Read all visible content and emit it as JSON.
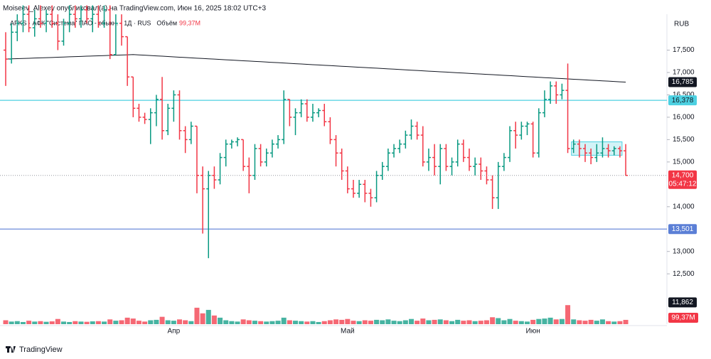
{
  "header": "Moiseev_Alexey опубликовал(а) на TradingView.com, Июн 16, 2025 18:02 UTC+3",
  "footer": "TradingView",
  "chart_data": {
    "type": "ohlc",
    "symbol": "AFKS · АФК \"Система\" ПАО - обыкн. · 1Д · RUS",
    "volume_title": "Объём",
    "currency": "RUB",
    "up_color": "#089981",
    "down_color": "#f23645",
    "ma_color": "#131722",
    "ylim": [
      11820,
      18620
    ],
    "yticks": [
      {
        "value": 12500,
        "label": "12,500"
      },
      {
        "value": 13000,
        "label": "13,000"
      },
      {
        "value": 14000,
        "label": "14,000"
      },
      {
        "value": 15000,
        "label": "15,000"
      },
      {
        "value": 15500,
        "label": "15,500"
      },
      {
        "value": 16000,
        "label": "16,000"
      },
      {
        "value": 16500,
        "label": "16,500"
      },
      {
        "value": 17000,
        "label": "17,000"
      },
      {
        "value": 17500,
        "label": "17,500"
      }
    ],
    "categories": [
      null,
      null,
      null,
      null,
      null,
      null,
      null,
      null,
      null,
      null,
      null,
      null,
      null,
      null,
      null,
      null,
      null,
      null,
      null,
      null,
      null,
      null,
      null,
      null,
      null,
      null,
      null,
      null,
      null,
      "Апр",
      null,
      null,
      null,
      null,
      null,
      null,
      null,
      null,
      null,
      null,
      null,
      null,
      null,
      null,
      null,
      null,
      null,
      null,
      null,
      null,
      null,
      null,
      null,
      null,
      null,
      null,
      null,
      null,
      null,
      "Май",
      null,
      null,
      null,
      null,
      null,
      null,
      null,
      null,
      null,
      null,
      null,
      null,
      null,
      null,
      null,
      null,
      null,
      null,
      null,
      null,
      null,
      null,
      null,
      null,
      null,
      null,
      null,
      null,
      null,
      null,
      null,
      "Июн",
      null,
      null,
      null,
      null,
      null,
      null,
      null,
      null,
      null,
      null,
      null,
      null,
      null,
      null,
      null,
      null
    ],
    "ohlc": [
      [
        17500,
        17900,
        16700,
        17300
      ],
      [
        17300,
        18100,
        17200,
        17900
      ],
      [
        17900,
        18300,
        17700,
        18100
      ],
      [
        18100,
        18500,
        17900,
        18300
      ],
      [
        18300,
        18500,
        17900,
        18000
      ],
      [
        18000,
        18400,
        17800,
        18200
      ],
      [
        18200,
        18500,
        18000,
        18100
      ],
      [
        18100,
        18400,
        17900,
        18300
      ],
      [
        18300,
        18500,
        18000,
        18100
      ],
      [
        18100,
        18300,
        17500,
        17700
      ],
      [
        17700,
        18200,
        17600,
        18100
      ],
      [
        18100,
        18500,
        17900,
        18300
      ],
      [
        18300,
        18500,
        18000,
        18200
      ],
      [
        18200,
        18500,
        18000,
        18400
      ],
      [
        18400,
        18500,
        18100,
        18200
      ],
      [
        18200,
        18500,
        17900,
        18300
      ],
      [
        18300,
        18500,
        18000,
        18100
      ],
      [
        18100,
        18500,
        18000,
        18400
      ],
      [
        18400,
        18500,
        17300,
        17400
      ],
      [
        17400,
        18300,
        17400,
        18100
      ],
      [
        18100,
        18300,
        17600,
        17800
      ],
      [
        17800,
        17800,
        16700,
        16900
      ],
      [
        16900,
        16900,
        16000,
        16200
      ],
      [
        16200,
        16300,
        15900,
        16000
      ],
      [
        16000,
        16100,
        15850,
        15950
      ],
      [
        15950,
        16200,
        15400,
        16100
      ],
      [
        16100,
        16500,
        15800,
        16400
      ],
      [
        16400,
        16900,
        15500,
        15700
      ],
      [
        15700,
        16300,
        15600,
        16200
      ],
      [
        16200,
        16600,
        15900,
        16500
      ],
      [
        16500,
        16600,
        15500,
        15700
      ],
      [
        15700,
        15800,
        15200,
        15500
      ],
      [
        15500,
        15900,
        15400,
        15800
      ],
      [
        15800,
        15800,
        14300,
        14700
      ],
      [
        14700,
        14900,
        13400,
        14400
      ],
      [
        14400,
        14800,
        12850,
        14700
      ],
      [
        14700,
        14900,
        14400,
        14600
      ],
      [
        14600,
        15200,
        14500,
        15100
      ],
      [
        15100,
        15500,
        14900,
        15400
      ],
      [
        15400,
        15500,
        15300,
        15450
      ],
      [
        15450,
        15550,
        15350,
        15500
      ],
      [
        15500,
        15500,
        14800,
        14900
      ],
      [
        14900,
        15100,
        14300,
        14700
      ],
      [
        14700,
        15400,
        14600,
        15300
      ],
      [
        15300,
        15400,
        14900,
        15000
      ],
      [
        15000,
        15300,
        14900,
        15200
      ],
      [
        15200,
        15500,
        15100,
        15400
      ],
      [
        15400,
        15600,
        15300,
        15500
      ],
      [
        15500,
        16600,
        15400,
        16400
      ],
      [
        16400,
        16400,
        15800,
        16000
      ],
      [
        16000,
        16200,
        15600,
        16100
      ],
      [
        16100,
        16400,
        16000,
        16300
      ],
      [
        16300,
        16400,
        15900,
        16000
      ],
      [
        16000,
        16300,
        15900,
        16100
      ],
      [
        16100,
        16200,
        16000,
        16150
      ],
      [
        16150,
        16300,
        15800,
        15900
      ],
      [
        15900,
        16000,
        15400,
        15500
      ],
      [
        15500,
        15600,
        14900,
        15200
      ],
      [
        15200,
        15300,
        14600,
        14800
      ],
      [
        14800,
        14900,
        14300,
        14400
      ],
      [
        14400,
        14600,
        14200,
        14300
      ],
      [
        14300,
        14600,
        14200,
        14500
      ],
      [
        14500,
        14600,
        14100,
        14300
      ],
      [
        14300,
        14400,
        14000,
        14200
      ],
      [
        14200,
        14800,
        14100,
        14700
      ],
      [
        14700,
        15000,
        14600,
        14900
      ],
      [
        14900,
        15300,
        14800,
        15200
      ],
      [
        15200,
        15400,
        15100,
        15300
      ],
      [
        15300,
        15500,
        15200,
        15400
      ],
      [
        15400,
        15700,
        15300,
        15600
      ],
      [
        15600,
        15950,
        15500,
        15800
      ],
      [
        15800,
        15900,
        15500,
        15600
      ],
      [
        15600,
        15800,
        14900,
        15000
      ],
      [
        15000,
        15300,
        14800,
        15100
      ],
      [
        15100,
        15400,
        14700,
        14900
      ],
      [
        14900,
        15400,
        14500,
        15300
      ],
      [
        15300,
        15400,
        14800,
        14900
      ],
      [
        14900,
        15100,
        14700,
        15000
      ],
      [
        15000,
        15500,
        14900,
        15400
      ],
      [
        15400,
        15500,
        15000,
        15100
      ],
      [
        15100,
        15300,
        14800,
        14900
      ],
      [
        14900,
        15100,
        14700,
        14950
      ],
      [
        14950,
        15100,
        14600,
        14800
      ],
      [
        14800,
        14900,
        14500,
        14600
      ],
      [
        14600,
        14700,
        13950,
        14200
      ],
      [
        14200,
        15000,
        13950,
        14900
      ],
      [
        14900,
        15200,
        14800,
        15100
      ],
      [
        15100,
        15800,
        15000,
        15700
      ],
      [
        15700,
        15900,
        15300,
        15600
      ],
      [
        15600,
        15900,
        15500,
        15800
      ],
      [
        15800,
        15900,
        15600,
        15850
      ],
      [
        15850,
        15900,
        15100,
        15200
      ],
      [
        15200,
        16200,
        15100,
        16100
      ],
      [
        16100,
        16600,
        16000,
        16400
      ],
      [
        16400,
        16800,
        16300,
        16700
      ],
      [
        16700,
        16800,
        16300,
        16500
      ],
      [
        16500,
        16750,
        16400,
        16600
      ],
      [
        16600,
        17200,
        15200,
        15300
      ],
      [
        15300,
        15500,
        15200,
        15400
      ],
      [
        15400,
        15500,
        15100,
        15300
      ],
      [
        15300,
        15400,
        15000,
        15200
      ],
      [
        15200,
        15300,
        14950,
        15100
      ],
      [
        15100,
        15400,
        15000,
        15200
      ],
      [
        15200,
        15550,
        15100,
        15300
      ],
      [
        15300,
        15400,
        15100,
        15250
      ],
      [
        15250,
        15350,
        15150,
        15300
      ],
      [
        15300,
        15350,
        15100,
        15250
      ],
      [
        15250,
        15400,
        14700,
        14700
      ]
    ],
    "ma": [
      17300,
      17305,
      17310,
      17314,
      17318,
      17323,
      17327,
      17332,
      17336,
      17341,
      17345,
      17350,
      17355,
      17359,
      17364,
      17368,
      17373,
      17377,
      17382,
      17386,
      17391,
      17395,
      17400,
      17393,
      17386,
      17378,
      17371,
      17364,
      17357,
      17349,
      17342,
      17335,
      17328,
      17320,
      17313,
      17306,
      17299,
      17291,
      17284,
      17277,
      17270,
      17262,
      17255,
      17248,
      17241,
      17233,
      17226,
      17219,
      17212,
      17204,
      17197,
      17190,
      17183,
      17175,
      17168,
      17161,
      17154,
      17146,
      17139,
      17132,
      17125,
      17117,
      17110,
      17103,
      17096,
      17088,
      17081,
      17074,
      17067,
      17059,
      17052,
      17045,
      17038,
      17030,
      17023,
      17016,
      17009,
      17001,
      16994,
      16987,
      16980,
      16972,
      16965,
      16958,
      16951,
      16943,
      16936,
      16929,
      16922,
      16914,
      16907,
      16900,
      16893,
      16885,
      16878,
      16871,
      16864,
      16856,
      16849,
      16842,
      16835,
      16827,
      16820,
      16813,
      16806,
      16798,
      16791,
      16785
    ],
    "volume": {
      "vlim": [
        0,
        460
      ],
      "last_label": "99,37M",
      "values": [
        90,
        60,
        70,
        50,
        80,
        60,
        70,
        55,
        65,
        120,
        60,
        50,
        70,
        60,
        55,
        65,
        70,
        60,
        110,
        80,
        90,
        150,
        130,
        80,
        60,
        90,
        100,
        170,
        90,
        80,
        110,
        90,
        70,
        380,
        250,
        330,
        200,
        150,
        90,
        70,
        60,
        110,
        90,
        80,
        70,
        60,
        70,
        80,
        150,
        90,
        80,
        70,
        60,
        70,
        50,
        70,
        90,
        110,
        100,
        120,
        80,
        70,
        90,
        80,
        100,
        90,
        110,
        80,
        70,
        90,
        120,
        80,
        130,
        90,
        100,
        110,
        90,
        70,
        100,
        80,
        90,
        70,
        80,
        90,
        160,
        140,
        90,
        120,
        80,
        70,
        60,
        100,
        120,
        130,
        150,
        110,
        120,
        440,
        110,
        90,
        80,
        100,
        80,
        110,
        70,
        60,
        70,
        99.37
      ]
    },
    "zone": {
      "from": 98,
      "to": 106,
      "low": 15150,
      "high": 15450,
      "color": "#4dd0e1"
    },
    "price_tags": [
      {
        "value": 16785,
        "label": "16,785",
        "color": "#131722",
        "text_color": "#ffffff"
      },
      {
        "value": 16378,
        "label": "16,378",
        "color": "#4dd0e1",
        "text_color": "#131722",
        "line": true
      },
      {
        "value": 14700,
        "label": "14,700",
        "color": "#f23645",
        "text_color": "#ffffff",
        "countdown": "05:47:12",
        "dotted": true
      },
      {
        "value": 13501,
        "label": "13,501",
        "color": "#5b7fd6",
        "text_color": "#ffffff",
        "line": true
      },
      {
        "value": 11862,
        "label": "11,862",
        "color": "#131722",
        "text_color": "#ffffff"
      }
    ]
  }
}
